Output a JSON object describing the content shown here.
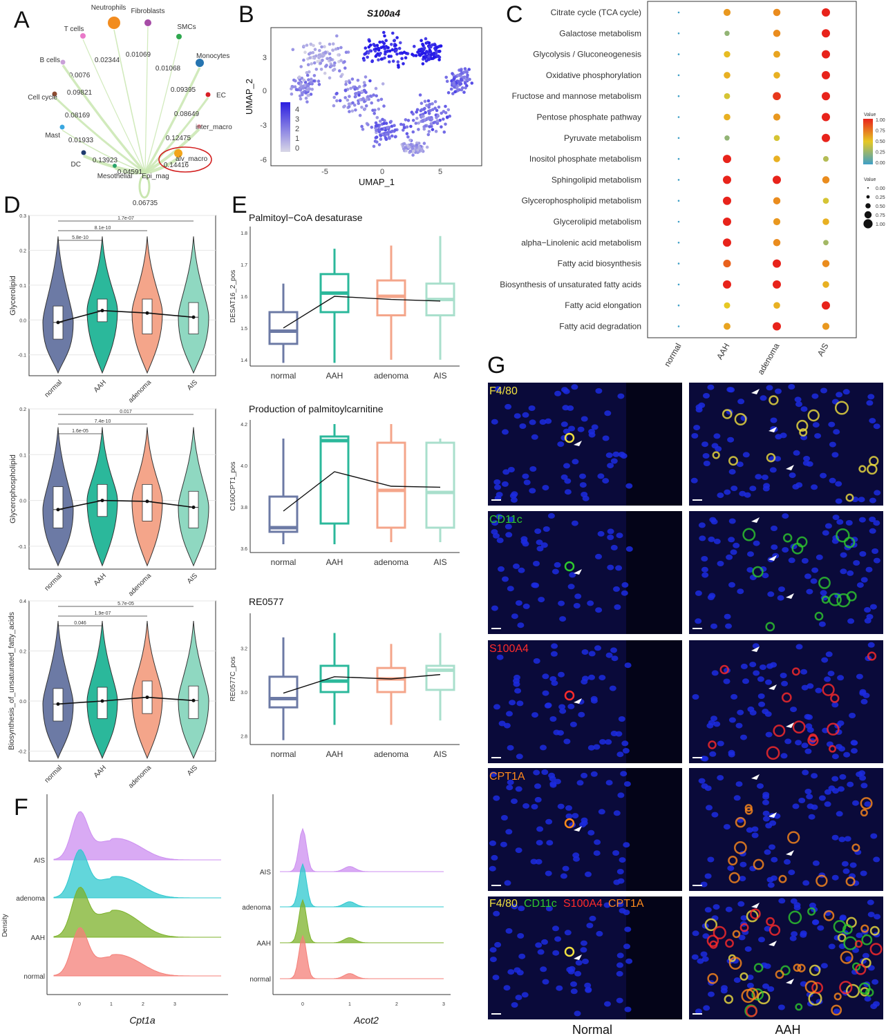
{
  "panels": {
    "A": "A",
    "B": "B",
    "C": "C",
    "D": "D",
    "E": "E",
    "F": "F",
    "G": "G"
  },
  "panel_a": {
    "center": "Epi_mag",
    "targets": [
      {
        "name": "Neutrophils",
        "value": "0.02344",
        "color": "#f28c1f"
      },
      {
        "name": "Fibroblasts",
        "value": "0.01069",
        "color": "#a64ca6"
      },
      {
        "name": "SMCs",
        "value": "0.01068",
        "color": "#2fa84f"
      },
      {
        "name": "T cells",
        "value": "0.0076",
        "color": "#e979c9"
      },
      {
        "name": "Monocytes",
        "value": "0.09395",
        "color": "#2674b0"
      },
      {
        "name": "B cells",
        "value": "0.09821",
        "color": "#c9a0d8"
      },
      {
        "name": "EC",
        "value": "0.08649",
        "color": "#d81f26"
      },
      {
        "name": "Cell cycle",
        "value": "0.08169",
        "color": "#8c4a2f"
      },
      {
        "name": "inter_macro",
        "value": "0.12475",
        "color": "#f39aa6"
      },
      {
        "name": "Mast",
        "value": "0.01933",
        "color": "#3aa7e0"
      },
      {
        "name": "alv_macro",
        "value": "0.14416",
        "color": "#f2a51a"
      },
      {
        "name": "DC",
        "value": "0.13923",
        "color": "#1f3a6e"
      },
      {
        "name": "Mesothelial",
        "value": "0.04591",
        "color": "#2aa36b"
      },
      {
        "name": "self",
        "value": "0.06735",
        "color": "#b5dd9a"
      }
    ]
  },
  "panel_b": {
    "title": "S100a4",
    "xlabel": "UMAP_1",
    "ylabel": "UMAP_2",
    "xticks": [
      "-5",
      "0",
      "5"
    ],
    "yticks": [
      "3",
      "0",
      "-3",
      "-6"
    ],
    "legend": [
      "4",
      "3",
      "2",
      "1",
      "0"
    ]
  },
  "panel_c": {
    "pathways": [
      "Citrate cycle (TCA cycle)",
      "Galactose metabolism",
      "Glycolysis / Gluconeogenesis",
      "Oxidative phosphorylation",
      "Fructose and mannose metabolism",
      "Pentose phosphate pathway",
      "Pyruvate metabolism",
      "Inositol phosphate metabolism",
      "Sphingolipid metabolism",
      "Glycerophospholipid metabolism",
      "Glycerolipid metabolism",
      "alpha−Linolenic acid metabolism",
      "Fatty acid biosynthesis",
      "Biosynthesis of unsaturated fatty acids",
      "Fatty acid elongation",
      "Fatty acid degradation"
    ],
    "groups": [
      "normal",
      "AAH",
      "adenoma",
      "AIS"
    ],
    "legend_color_title": "Value",
    "legend_color_ticks": [
      "1.00",
      "0.75",
      "0.50",
      "0.25",
      "0.00"
    ],
    "legend_size_title": "Value",
    "legend_size_ticks": [
      "0.00",
      "0.25",
      "0.50",
      "0.75",
      "1.00"
    ],
    "values": [
      [
        0,
        0.7,
        0.75,
        1.0
      ],
      [
        0,
        0.25,
        0.75,
        1.0
      ],
      [
        0,
        0.55,
        0.65,
        1.0
      ],
      [
        0,
        0.6,
        0.6,
        1.0
      ],
      [
        0,
        0.45,
        0.95,
        1.0
      ],
      [
        0,
        0.6,
        0.7,
        1.0
      ],
      [
        0,
        0.25,
        0.45,
        1.0
      ],
      [
        0,
        1.0,
        0.6,
        0.35
      ],
      [
        0,
        1.0,
        1.0,
        0.75
      ],
      [
        0,
        1.0,
        0.75,
        0.45
      ],
      [
        0,
        1.0,
        0.7,
        0.6
      ],
      [
        0,
        1.0,
        0.75,
        0.3
      ],
      [
        0,
        0.85,
        1.0,
        0.75
      ],
      [
        0,
        1.0,
        1.0,
        0.6
      ],
      [
        0,
        0.5,
        0.6,
        1.0
      ],
      [
        0,
        0.65,
        1.0,
        0.7
      ]
    ]
  },
  "panel_d": {
    "groups": [
      "normal",
      "AAH",
      "adenoma",
      "AIS"
    ],
    "colors": [
      "#6c7aa5",
      "#2bb89b",
      "#f4a58a",
      "#8fd8c1"
    ],
    "plots": [
      {
        "ylabel": "Glycerolipid",
        "yticks": [
          "0.3",
          "0.2",
          "0.1",
          "0.0",
          "-0.1"
        ],
        "ymin": -0.16,
        "ymax": 0.3,
        "medians": [
          -0.007,
          0.027,
          0.02,
          0.008
        ],
        "q1": [
          -0.055,
          -0.005,
          -0.04,
          -0.04
        ],
        "q3": [
          0.04,
          0.06,
          0.06,
          0.05
        ],
        "pvals": [
          "1.7e-07",
          "8.1e-10",
          "5.8e-10"
        ]
      },
      {
        "ylabel": "Glycerophospholipid",
        "yticks": [
          "0.2",
          "0.1",
          "0.0",
          "-0.1"
        ],
        "ymin": -0.15,
        "ymax": 0.2,
        "medians": [
          -0.02,
          0.0,
          -0.002,
          -0.015
        ],
        "q1": [
          -0.06,
          -0.035,
          -0.045,
          -0.06
        ],
        "q3": [
          0.03,
          0.035,
          0.035,
          0.02
        ],
        "pvals": [
          "0.017",
          "7.4e-10",
          "1.6e-05"
        ]
      },
      {
        "ylabel": "Biosynthesis_of_unsaturated_fatty_acids",
        "yticks": [
          "0.4",
          "0.2",
          "0.0",
          "-0.2"
        ],
        "ymin": -0.24,
        "ymax": 0.4,
        "medians": [
          -0.012,
          0.0,
          0.015,
          0.002
        ],
        "q1": [
          -0.08,
          -0.07,
          -0.05,
          -0.07
        ],
        "q3": [
          0.05,
          0.055,
          0.08,
          0.06
        ],
        "pvals": [
          "5.7e-05",
          "1.9e-07",
          "0.046"
        ]
      }
    ]
  },
  "panel_e": {
    "groups": [
      "normal",
      "AAH",
      "adenoma",
      "AIS"
    ],
    "colors": [
      "#6c7aa5",
      "#2bb89b",
      "#f4a58a",
      "#a9dfcc"
    ],
    "plots": [
      {
        "title": "Palmitoyl−CoA desaturase",
        "ylabel": "DESAT16_2_pos",
        "yticks": [
          "1.8",
          "1.7",
          "1.6",
          "1.5",
          "1.4"
        ],
        "ymin": 1.38,
        "ymax": 1.82,
        "stats": [
          [
            1.39,
            1.45,
            1.49,
            1.55,
            1.64
          ],
          [
            1.39,
            1.55,
            1.61,
            1.67,
            1.75
          ],
          [
            1.4,
            1.54,
            1.6,
            1.65,
            1.76
          ],
          [
            1.4,
            1.54,
            1.59,
            1.64,
            1.79
          ]
        ],
        "means": [
          1.5,
          1.6,
          1.59,
          1.585
        ]
      },
      {
        "title": "Production of palmitoylcarnitine",
        "ylabel": "C160CPT1_pos",
        "yticks": [
          "4.2",
          "4.0",
          "3.8",
          "3.6"
        ],
        "ymin": 3.58,
        "ymax": 4.22,
        "stats": [
          [
            3.62,
            3.68,
            3.7,
            3.85,
            4.13
          ],
          [
            3.62,
            3.72,
            4.12,
            4.14,
            4.2
          ],
          [
            3.63,
            3.7,
            3.88,
            4.11,
            4.2
          ],
          [
            3.63,
            3.7,
            3.87,
            4.11,
            4.13
          ]
        ],
        "means": [
          3.78,
          3.97,
          3.9,
          3.895
        ]
      },
      {
        "title": "RE0577",
        "ylabel": "RE0577C_pos",
        "yticks": [
          "3.2",
          "3.0",
          "2.8"
        ],
        "ymin": 2.76,
        "ymax": 3.36,
        "stats": [
          [
            2.78,
            2.93,
            2.97,
            3.07,
            3.25
          ],
          [
            2.85,
            3.0,
            3.05,
            3.12,
            3.27
          ],
          [
            2.85,
            3.0,
            3.06,
            3.11,
            3.22
          ],
          [
            2.87,
            3.01,
            3.1,
            3.12,
            3.27
          ]
        ],
        "means": [
          2.995,
          3.07,
          3.06,
          3.08
        ]
      }
    ]
  },
  "panel_f": {
    "ylabel": "Density",
    "groups": [
      "AIS",
      "adenoma",
      "AAH",
      "normal"
    ],
    "colors": [
      "#cc8ef0",
      "#2ec8cf",
      "#7cb22a",
      "#f47f78"
    ],
    "left": {
      "xlabel": "Cpt1a",
      "xticks": [
        "0",
        "1",
        "2",
        "3"
      ]
    },
    "right": {
      "xlabel": "Acot2",
      "xticks": [
        "0",
        "1",
        "2",
        "3"
      ]
    }
  },
  "panel_g": {
    "rows": [
      {
        "label": "F4/80",
        "color": "#f0e040"
      },
      {
        "label": "CD11c",
        "color": "#2ec92e"
      },
      {
        "label": "S100A4",
        "color": "#ff2b2b"
      },
      {
        "label": "CPT1A",
        "color": "#ff8a1c"
      }
    ],
    "merge": [
      {
        "text": "F4/80",
        "color": "#f0e040"
      },
      {
        "text": "CD11c",
        "color": "#2ec92e"
      },
      {
        "text": "S100A4",
        "color": "#ff2b2b"
      },
      {
        "text": "CPT1A",
        "color": "#ff8a1c"
      }
    ],
    "columns": [
      "Normal",
      "AAH"
    ]
  }
}
